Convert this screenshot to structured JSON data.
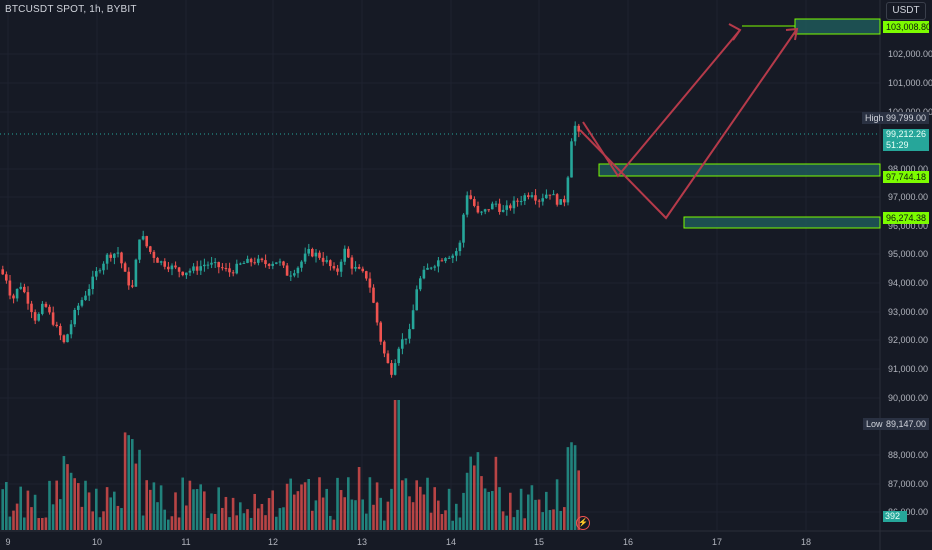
{
  "header": {
    "symbol": "BTCUSDT SPOT, 1h, BYBIT",
    "currency": "USDT"
  },
  "price_axis": {
    "ticks": [
      "102,000.00",
      "101,000.00",
      "100,000.00",
      "98,000.00",
      "97,000.00",
      "96,000.00",
      "95,000.00",
      "94,000.00",
      "93,000.00",
      "92,000.00",
      "91,000.00",
      "90,000.00",
      "88,000.00",
      "87,000.00",
      "86,000.00"
    ]
  },
  "time_axis": {
    "ticks": [
      "9",
      "10",
      "11",
      "12",
      "13",
      "14",
      "15",
      "16",
      "17",
      "18"
    ]
  },
  "labels": {
    "high_key": "High",
    "high_value": "99,799.00",
    "low_key": "Low",
    "low_value": "89,147.00",
    "current_price": "99,212.26",
    "countdown": "51:29",
    "target_zone": "103,008.80",
    "support_1": "97,744.18",
    "support_2": "96,274.38",
    "volume_value": "392"
  },
  "colors": {
    "bull": "#26a69a",
    "bear": "#ef5350",
    "zone": "#1f5c5c",
    "zone_border": "#7cfc00",
    "arrow": "#b53a4a",
    "background": "#161a25"
  }
}
